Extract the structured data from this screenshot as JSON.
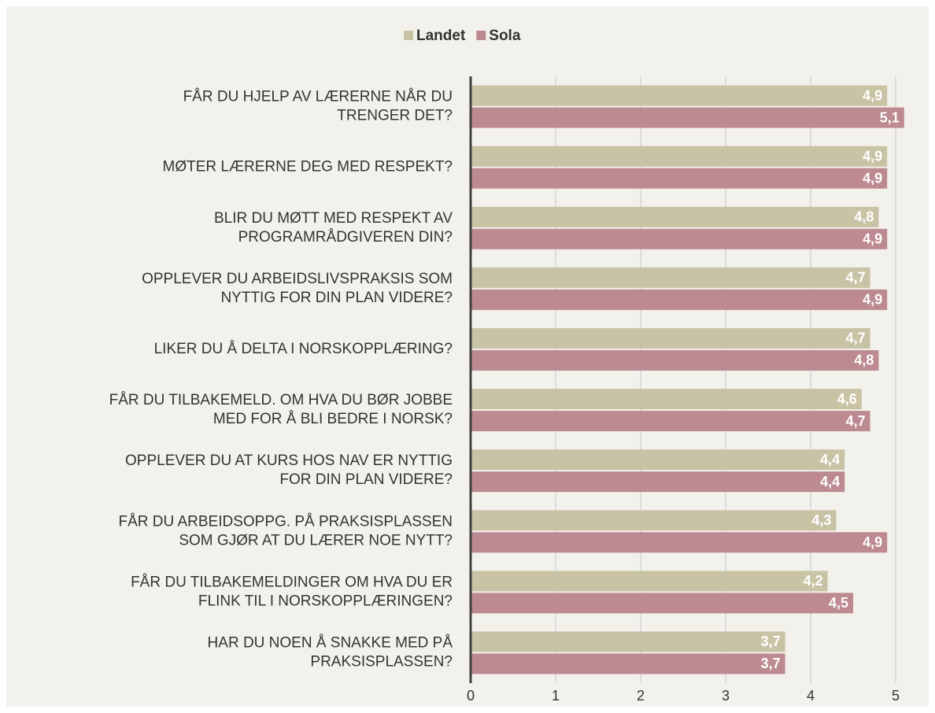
{
  "chart_data": {
    "type": "bar",
    "orientation": "horizontal",
    "categories": [
      "FÅR DU HJELP AV LÆRERNE NÅR DU\nTRENGER DET?",
      "MØTER LÆRERNE DEG MED RESPEKT?",
      "BLIR DU MØTT MED RESPEKT AV\nPROGRAMRÅDGIVEREN DIN?",
      "OPPLEVER DU ARBEIDSLIVSPRAKSIS SOM\nNYTTIG FOR DIN PLAN VIDERE?",
      "LIKER DU Å DELTA I NORSKOPPLÆRING?",
      "FÅR DU TILBAKEMELD. OM HVA DU BØR JOBBE\nMED FOR Å BLI BEDRE I NORSK?",
      "OPPLEVER DU AT KURS HOS NAV ER NYTTIG\nFOR DIN PLAN VIDERE?",
      "FÅR DU ARBEIDSOPPG. PÅ PRAKSISPLASSEN\nSOM GJØR AT DU LÆRER NOE NYTT?",
      "FÅR DU TILBAKEMELDINGER OM HVA DU ER\nFLINK TIL I NORSKOPPLÆRINGEN?",
      "HAR DU NOEN Å SNAKKE MED PÅ\nPRAKSISPLASSEN?"
    ],
    "series": [
      {
        "name": "Landet",
        "color": "#c9c3a6",
        "values": [
          4.9,
          4.9,
          4.8,
          4.7,
          4.7,
          4.6,
          4.4,
          4.3,
          4.2,
          3.7
        ],
        "value_labels": [
          "4,9",
          "4,9",
          "4,8",
          "4,7",
          "4,7",
          "4,6",
          "4,4",
          "4,3",
          "4,2",
          "3,7"
        ]
      },
      {
        "name": "Sola",
        "color": "#bc8a90",
        "values": [
          5.1,
          4.9,
          4.9,
          4.9,
          4.8,
          4.7,
          4.4,
          4.9,
          4.5,
          3.7
        ],
        "value_labels": [
          "5,1",
          "4,9",
          "4,9",
          "4,9",
          "4,8",
          "4,7",
          "4,4",
          "4,9",
          "4,5",
          "3,7"
        ]
      }
    ],
    "xlim": [
      0,
      5
    ],
    "xticks": [
      0,
      1,
      2,
      3,
      4,
      5
    ],
    "grid": true,
    "legend": "top"
  }
}
